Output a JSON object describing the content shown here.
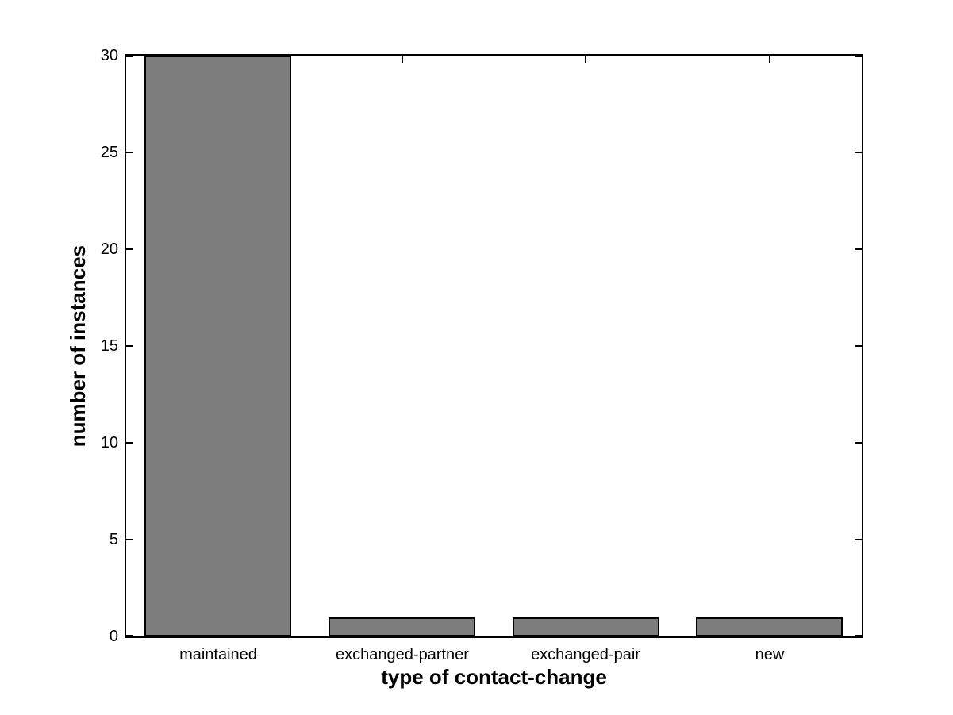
{
  "chart_data": {
    "type": "bar",
    "title": "",
    "xlabel": "type of contact-change",
    "ylabel": "number of instances",
    "categories": [
      "maintained",
      "exchanged-partner",
      "exchanged-pair",
      "new"
    ],
    "values": [
      30,
      1,
      1,
      1
    ],
    "ylim": [
      0,
      30
    ],
    "yticks": [
      0,
      5,
      10,
      15,
      20,
      25,
      30
    ],
    "bar_width_fraction": 0.8,
    "grid": false,
    "legend": false,
    "colors": {
      "bar_fill": "#7d7d7d",
      "bar_edge": "#000000",
      "axis": "#000000",
      "background": "#ffffff",
      "text": "#000000"
    }
  }
}
